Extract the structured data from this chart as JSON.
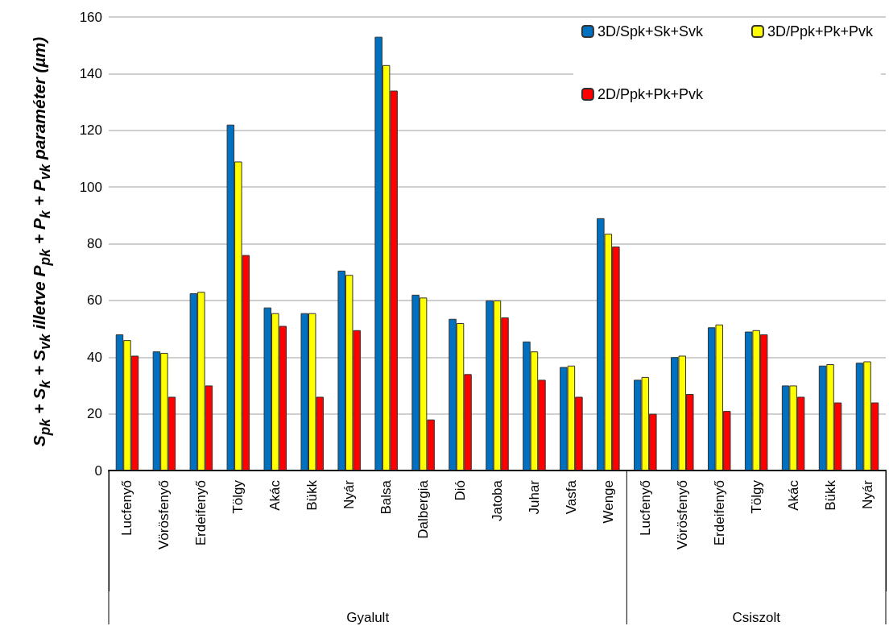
{
  "chart_data": {
    "type": "bar",
    "ylabel": "S$_{pk}$ + S$_{k}$ + S$_{vk}$ illetve P$_{pk}$ + P$_{k}$ + P$_{vk}$ paraméter (µm)",
    "categories": [
      "Lucfenyő",
      "Vörösfenyő",
      "Erdeifenyő",
      "Tölgy",
      "Akác",
      "Bükk",
      "Nyár",
      "Balsa",
      "Dalbergia",
      "Dió",
      "Jatoba",
      "Juhar",
      "Vasfa",
      "Wenge",
      "Lucfenyő",
      "Vörösfenyő",
      "Erdeifenyő",
      "Tölgy",
      "Akác",
      "Bükk",
      "Nyár"
    ],
    "series": [
      {
        "name": "3D/Spk+Sk+Svk",
        "color": "#0070c0",
        "values": [
          48,
          42,
          62.5,
          122,
          57.5,
          55.5,
          70.5,
          153,
          62,
          53.5,
          60,
          45.5,
          36.5,
          89,
          32,
          40,
          50.5,
          49,
          30,
          37,
          38
        ]
      },
      {
        "name": "3D/Ppk+Pk+Pvk",
        "color": "#ffff00",
        "values": [
          46,
          41.5,
          63,
          109,
          55.5,
          55.5,
          69,
          143,
          61,
          52,
          60,
          42,
          37,
          83.5,
          33,
          40.5,
          51.5,
          49.5,
          30,
          37.5,
          38.5
        ]
      },
      {
        "name": "2D/Ppk+Pk+Pvk",
        "color": "#ff0000",
        "values": [
          40.5,
          26,
          30,
          76,
          51,
          26,
          49.5,
          134,
          18,
          34,
          54,
          32,
          26,
          79,
          20,
          27,
          21,
          48,
          26,
          24,
          24
        ]
      }
    ],
    "ylim": [
      0,
      160
    ],
    "yticks": [
      0,
      20,
      40,
      60,
      80,
      100,
      120,
      140,
      160
    ],
    "grid": "y",
    "legend": "top right",
    "annotations": [
      "Gyalult",
      "Csiszolt"
    ]
  }
}
